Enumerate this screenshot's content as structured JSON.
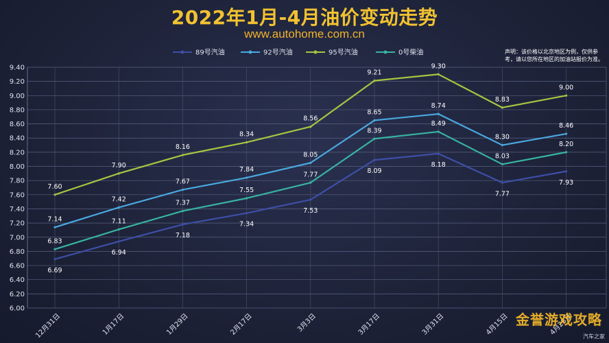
{
  "title": "2022年1月-4月油价变动走势",
  "subtitle": "www.autohome.com.cn",
  "note": "声明：该价格以北京地区为例，仅供参考，请以您所在地区的加油站报价为准。",
  "credit": "汽车之家",
  "watermark": "金誉游戏攻略",
  "chart_data": {
    "type": "line",
    "categories": [
      "12月31日",
      "1月17日",
      "1月29日",
      "2月17日",
      "3月3日",
      "3月17日",
      "3月31日",
      "4月15日",
      "4月28日"
    ],
    "ylim": [
      6.0,
      9.4
    ],
    "yticks": [
      "6.00",
      "6.20",
      "6.40",
      "6.60",
      "6.80",
      "7.00",
      "7.20",
      "7.40",
      "7.60",
      "7.80",
      "8.00",
      "8.20",
      "8.40",
      "8.60",
      "8.80",
      "9.00",
      "9.20",
      "9.40"
    ],
    "grid": true,
    "legend_position": "top",
    "series": [
      {
        "name": "89号汽油",
        "color": "#3e4fa8",
        "values": [
          6.69,
          6.94,
          7.18,
          7.34,
          7.53,
          8.09,
          8.18,
          7.77,
          7.93
        ]
      },
      {
        "name": "92号汽油",
        "color": "#4aa9e0",
        "values": [
          7.14,
          7.42,
          7.67,
          7.84,
          8.05,
          8.65,
          8.74,
          8.3,
          8.46
        ]
      },
      {
        "name": "95号汽油",
        "color": "#a6c640",
        "values": [
          7.6,
          7.9,
          8.16,
          8.34,
          8.56,
          9.21,
          9.3,
          8.83,
          9.0
        ]
      },
      {
        "name": "0号柴油",
        "color": "#38b4a2",
        "values": [
          6.83,
          7.11,
          7.37,
          7.55,
          7.77,
          8.39,
          8.49,
          8.03,
          8.2
        ]
      }
    ],
    "labels": [
      [
        "6.69",
        "6.94",
        "7.18",
        "7.34",
        "7.53",
        "8.09",
        "8.18",
        "7.77",
        "7.93"
      ],
      [
        "7.14",
        "7.42",
        "7.67",
        "7.84",
        "8.05",
        "8.65",
        "8.74",
        "8.30",
        "8.46"
      ],
      [
        "7.60",
        "7.90",
        "8.16",
        "8.34",
        "8.56",
        "9.21",
        "9.30",
        "8.83",
        "9.00"
      ],
      [
        "6.83",
        "7.11",
        "7.37",
        "7.55",
        "7.77",
        "8.39",
        "8.49",
        "8.03",
        "8.20"
      ]
    ]
  }
}
